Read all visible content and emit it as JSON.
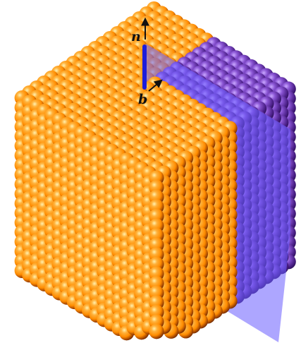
{
  "labels": {
    "normal": "n",
    "burgers": "b"
  },
  "colors": {
    "sphere_highlight": "#fff1b0",
    "sphere_light": "#ffb13a",
    "sphere_mid": "#ff8c00",
    "sphere_dark": "#9a3f00",
    "sphere_shadow": "#5c2500",
    "sphere_purple_light": "#c9a8ff",
    "sphere_purple_mid": "#8a55d4",
    "sphere_purple_dark": "#4a1f86",
    "plane_fill": "#6a5cff",
    "dislocation_line": "#1d1ddb",
    "arrow": "#111111",
    "background": "#ffffff"
  },
  "icons": {
    "normal_vector": "arrow-up-icon",
    "burgers_vector": "arrow-diagonal-icon"
  },
  "plane_opacity": 0.55
}
